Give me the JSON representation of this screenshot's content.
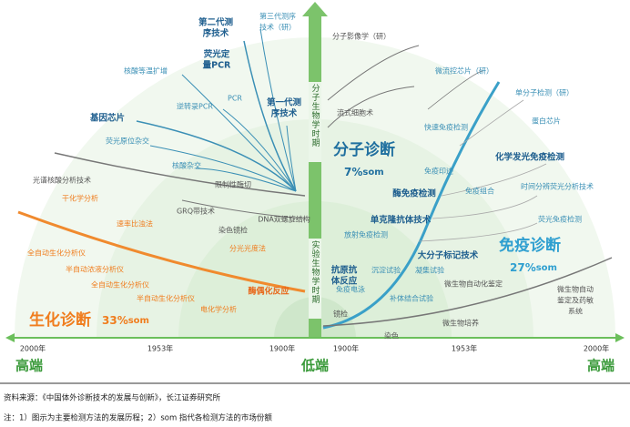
{
  "center_axis": {
    "upper": "分子生物学时期",
    "lower": "实验生物学时期"
  },
  "timeline": {
    "left": [
      "2000年",
      "1953年",
      "1900年"
    ],
    "right": [
      "1900年",
      "1953年",
      "2000年"
    ]
  },
  "ends": {
    "left": "高端",
    "center": "低端",
    "right": "高端"
  },
  "molecular_left": [
    [
      "第二代测",
      "序技术"
    ],
    [
      "第三代测序",
      "技术（研）"
    ],
    [
      "荧光定",
      "量PCR"
    ],
    [
      "核酸等温扩增"
    ],
    [
      "PCR"
    ],
    [
      "逆转录PCR"
    ],
    [
      "基因芯片"
    ],
    [
      "第一代测",
      "序技术"
    ],
    [
      "荧光原位杂交"
    ],
    [
      "核酸杂交"
    ],
    [
      "光谱核酸分析技术"
    ],
    [
      "限制性酶切"
    ],
    [
      "GRQ带技术"
    ],
    [
      "DNA双螺旋结构"
    ],
    [
      "染色镜检"
    ]
  ],
  "biochemical_left": [
    [
      "干化学分析"
    ],
    [
      "速率比浊法"
    ],
    [
      "全自动生化分析仪"
    ],
    [
      "半自动浓液分析仪"
    ],
    [
      "全自动生化分析仪"
    ],
    [
      "半自动生化分析仪"
    ],
    [
      "分光光度法"
    ],
    [
      "酶偶化反应"
    ],
    [
      "电化学分析"
    ]
  ],
  "right_labels": [
    [
      "分子影像学（研）"
    ],
    [
      "流式细胞术"
    ],
    [
      "微流控芯片（研）"
    ],
    [
      "单分子检测（研）"
    ],
    [
      "蛋白芯片"
    ],
    [
      "快速免疫检测"
    ],
    [
      "化学发光免疫检测"
    ],
    [
      "免疫印迹"
    ],
    [
      "酶免疫检测"
    ],
    [
      "免疫组合"
    ],
    [
      "时间分辨荧光分析技术"
    ],
    [
      "单克隆抗体技术"
    ],
    [
      "荧光免疫检测"
    ],
    [
      "放射免疫检测"
    ],
    [
      "大分子标记技术"
    ],
    [
      "抗原抗",
      "体反应"
    ],
    [
      "沉淀试验"
    ],
    [
      "凝集试验"
    ],
    [
      "免疫电泳"
    ],
    [
      "补体结合试验"
    ],
    [
      "微生物自动化鉴定"
    ],
    [
      "微生物自动",
      "鉴定及药敏",
      "系统"
    ],
    [
      "镜检"
    ],
    [
      "微生物培养"
    ],
    [
      "染色"
    ]
  ],
  "sections": {
    "biochemical": {
      "name": "生化诊断",
      "share": "33%",
      "unit": "som"
    },
    "molecular": {
      "name": "分子诊断",
      "share": "7%",
      "unit": "som"
    },
    "immune": {
      "name": "免疫诊断",
      "share": "27%",
      "unit": "som"
    }
  },
  "footer": {
    "source": "资料来源：《中国体外诊断技术的发展与创新》，长江证券研究所",
    "note": "注：1）图示为主要检测方法的发展历程；2）som 指代各检测方法的市场份额"
  }
}
